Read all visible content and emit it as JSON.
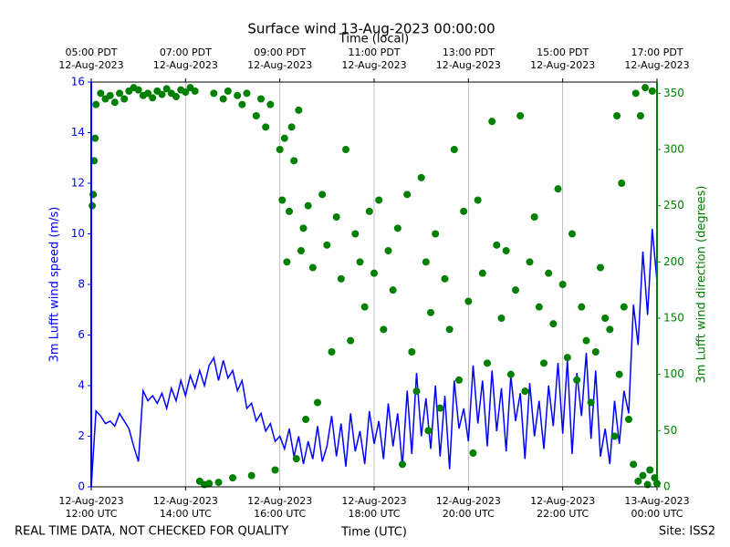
{
  "chart_data": {
    "type": "line-scatter",
    "title": "Surface wind 13-Aug-2023 00:00:00",
    "xlabel": "Time (UTC)",
    "x2label": "Time (local)",
    "ylabel": "3m Lufft wind speed (m/s)",
    "y2label": "3m Lufft wind direction (degrees)",
    "footer_left": "REAL TIME DATA, NOT CHECKED FOR QUALITY",
    "footer_right": "Site: ISS2",
    "grid": "x",
    "xlim": [
      0,
      12
    ],
    "xticks": [
      {
        "value": 0,
        "label": [
          "12-Aug-2023",
          "12:00 UTC"
        ]
      },
      {
        "value": 2,
        "label": [
          "12-Aug-2023",
          "14:00 UTC"
        ]
      },
      {
        "value": 4,
        "label": [
          "12-Aug-2023",
          "16:00 UTC"
        ]
      },
      {
        "value": 6,
        "label": [
          "12-Aug-2023",
          "18:00 UTC"
        ]
      },
      {
        "value": 8,
        "label": [
          "12-Aug-2023",
          "20:00 UTC"
        ]
      },
      {
        "value": 10,
        "label": [
          "12-Aug-2023",
          "22:00 UTC"
        ]
      },
      {
        "value": 12,
        "label": [
          "13-Aug-2023",
          "00:00 UTC"
        ]
      }
    ],
    "x2ticks": [
      {
        "value": 0,
        "label": [
          "05:00 PDT",
          "12-Aug-2023"
        ]
      },
      {
        "value": 2,
        "label": [
          "07:00 PDT",
          "12-Aug-2023"
        ]
      },
      {
        "value": 4,
        "label": [
          "09:00 PDT",
          "12-Aug-2023"
        ]
      },
      {
        "value": 6,
        "label": [
          "11:00 PDT",
          "12-Aug-2023"
        ]
      },
      {
        "value": 8,
        "label": [
          "13:00 PDT",
          "12-Aug-2023"
        ]
      },
      {
        "value": 10,
        "label": [
          "15:00 PDT",
          "12-Aug-2023"
        ]
      },
      {
        "value": 12,
        "label": [
          "17:00 PDT",
          "12-Aug-2023"
        ]
      }
    ],
    "ylim": [
      0,
      16
    ],
    "yticks": [
      0,
      2,
      4,
      6,
      8,
      10,
      12,
      14,
      16
    ],
    "y2lim": [
      0,
      360
    ],
    "y2ticks": [
      0,
      50,
      100,
      150,
      200,
      250,
      300,
      350
    ],
    "series": [
      {
        "name": "3m Lufft wind speed",
        "color": "#0000ff",
        "kind": "line",
        "x": [
          0,
          0.1,
          0.2,
          0.3,
          0.4,
          0.5,
          0.6,
          0.7,
          0.8,
          0.9,
          1,
          1.1,
          1.2,
          1.3,
          1.4,
          1.5,
          1.6,
          1.7,
          1.8,
          1.9,
          2,
          2.1,
          2.2,
          2.3,
          2.4,
          2.5,
          2.6,
          2.7,
          2.8,
          2.9,
          3,
          3.1,
          3.2,
          3.3,
          3.4,
          3.5,
          3.6,
          3.7,
          3.8,
          3.9,
          4,
          4.1,
          4.2,
          4.3,
          4.4,
          4.5,
          4.6,
          4.7,
          4.8,
          4.9,
          5,
          5.1,
          5.2,
          5.3,
          5.4,
          5.5,
          5.6,
          5.7,
          5.8,
          5.9,
          6,
          6.1,
          6.2,
          6.3,
          6.4,
          6.5,
          6.6,
          6.7,
          6.8,
          6.9,
          7,
          7.1,
          7.2,
          7.3,
          7.4,
          7.5,
          7.6,
          7.7,
          7.8,
          7.9,
          8,
          8.1,
          8.2,
          8.3,
          8.4,
          8.5,
          8.6,
          8.7,
          8.8,
          8.9,
          9,
          9.1,
          9.2,
          9.3,
          9.4,
          9.5,
          9.6,
          9.7,
          9.8,
          9.9,
          10,
          10.1,
          10.2,
          10.3,
          10.4,
          10.5,
          10.6,
          10.7,
          10.8,
          10.9,
          11,
          11.1,
          11.2,
          11.3,
          11.4,
          11.5,
          11.6,
          11.7,
          11.8,
          11.9,
          12
        ],
        "values": [
          0,
          3.0,
          2.8,
          2.5,
          2.6,
          2.4,
          2.9,
          2.6,
          2.3,
          1.6,
          1.0,
          3.8,
          3.4,
          3.6,
          3.3,
          3.7,
          3.1,
          3.9,
          3.4,
          4.2,
          3.6,
          4.4,
          3.9,
          4.6,
          4.0,
          4.8,
          5.1,
          4.2,
          5.0,
          4.3,
          4.6,
          3.8,
          4.2,
          3.1,
          3.3,
          2.6,
          2.9,
          2.2,
          2.5,
          1.8,
          2.0,
          1.5,
          2.3,
          1.2,
          2.0,
          0.9,
          1.8,
          1.1,
          2.4,
          1.0,
          1.6,
          2.8,
          1.2,
          2.5,
          0.8,
          2.9,
          1.4,
          2.2,
          0.9,
          3.0,
          1.7,
          2.6,
          1.1,
          3.3,
          1.6,
          2.9,
          0.8,
          3.8,
          1.3,
          4.5,
          2.0,
          3.5,
          1.5,
          4.0,
          1.2,
          3.6,
          0.7,
          4.2,
          2.3,
          3.1,
          1.8,
          4.8,
          2.5,
          4.2,
          1.6,
          4.6,
          2.2,
          3.9,
          1.4,
          4.4,
          2.6,
          3.7,
          1.1,
          4.1,
          2.0,
          3.4,
          1.5,
          4.0,
          2.4,
          4.9,
          2.1,
          5.0,
          1.3,
          4.5,
          2.8,
          5.3,
          1.9,
          4.6,
          1.2,
          2.3,
          0.9,
          3.4,
          1.7,
          3.8,
          2.9,
          7.2,
          5.6,
          9.3,
          6.8,
          10.2,
          8.1
        ]
      },
      {
        "name": "3m Lufft wind direction",
        "color": "#008000",
        "kind": "scatter",
        "axis": "y2",
        "x": [
          0.02,
          0.04,
          0.06,
          0.08,
          0.1,
          0.2,
          0.3,
          0.4,
          0.5,
          0.6,
          0.7,
          0.8,
          0.9,
          1.0,
          1.1,
          1.2,
          1.3,
          1.4,
          1.5,
          1.6,
          1.7,
          1.8,
          1.9,
          2.0,
          2.1,
          2.2,
          2.3,
          2.4,
          2.5,
          2.6,
          2.7,
          2.8,
          2.9,
          3.0,
          3.1,
          3.2,
          3.3,
          3.4,
          3.5,
          3.6,
          3.7,
          3.8,
          3.9,
          4.0,
          4.05,
          4.1,
          4.15,
          4.2,
          4.25,
          4.3,
          4.35,
          4.4,
          4.45,
          4.5,
          4.55,
          4.6,
          4.7,
          4.8,
          4.9,
          5.0,
          5.1,
          5.2,
          5.3,
          5.4,
          5.5,
          5.6,
          5.7,
          5.8,
          5.9,
          6.0,
          6.1,
          6.2,
          6.3,
          6.4,
          6.5,
          6.6,
          6.7,
          6.8,
          6.9,
          7.0,
          7.1,
          7.15,
          7.2,
          7.3,
          7.4,
          7.5,
          7.6,
          7.7,
          7.8,
          7.9,
          8.0,
          8.1,
          8.2,
          8.3,
          8.4,
          8.5,
          8.6,
          8.7,
          8.8,
          8.9,
          9.0,
          9.1,
          9.2,
          9.3,
          9.4,
          9.5,
          9.6,
          9.7,
          9.8,
          9.9,
          10.0,
          10.1,
          10.2,
          10.3,
          10.4,
          10.5,
          10.6,
          10.7,
          10.8,
          10.9,
          11.0,
          11.1,
          11.15,
          11.2,
          11.25,
          11.3,
          11.4,
          11.5,
          11.55,
          11.6,
          11.65,
          11.7,
          11.75,
          11.8,
          11.85,
          11.9,
          11.95,
          12.0
        ],
        "values": [
          250,
          260,
          290,
          310,
          340,
          350,
          345,
          348,
          342,
          350,
          345,
          352,
          355,
          353,
          348,
          350,
          346,
          352,
          349,
          354,
          350,
          347,
          353,
          351,
          355,
          352,
          5,
          2,
          3,
          350,
          4,
          345,
          352,
          8,
          348,
          340,
          350,
          10,
          330,
          345,
          320,
          340,
          15,
          300,
          255,
          310,
          200,
          245,
          320,
          290,
          25,
          335,
          210,
          230,
          60,
          250,
          195,
          75,
          260,
          215,
          120,
          240,
          185,
          300,
          130,
          225,
          200,
          160,
          245,
          190,
          255,
          140,
          210,
          175,
          230,
          20,
          260,
          120,
          85,
          275,
          200,
          50,
          155,
          225,
          70,
          185,
          140,
          300,
          95,
          245,
          165,
          30,
          255,
          190,
          110,
          325,
          215,
          150,
          210,
          100,
          175,
          330,
          85,
          200,
          240,
          160,
          110,
          190,
          145,
          265,
          180,
          115,
          225,
          95,
          160,
          130,
          75,
          120,
          195,
          150,
          140,
          45,
          330,
          100,
          270,
          160,
          60,
          20,
          350,
          5,
          330,
          10,
          355,
          2,
          15,
          352,
          8,
          3
        ]
      }
    ]
  }
}
